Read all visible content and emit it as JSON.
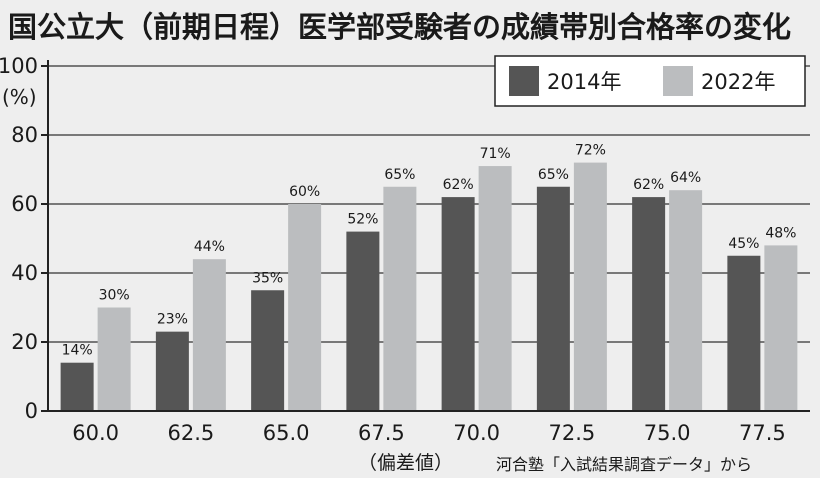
{
  "chart_data": {
    "type": "bar",
    "title": "国公立大（前期日程）医学部受験者の成績帯別合格率の変化",
    "categories": [
      "60.0",
      "62.5",
      "65.0",
      "67.5",
      "70.0",
      "72.5",
      "75.0",
      "77.5"
    ],
    "series": [
      {
        "name": "2014年",
        "color": "#555555",
        "values": [
          14,
          23,
          35,
          52,
          62,
          65,
          62,
          45
        ],
        "labels": [
          "14%",
          "23%",
          "35%",
          "52%",
          "62%",
          "65%",
          "62%",
          "45%"
        ]
      },
      {
        "name": "2022年",
        "color": "#bbbdbf",
        "values": [
          30,
          44,
          60,
          65,
          71,
          72,
          64,
          48
        ],
        "labels": [
          "30%",
          "44%",
          "60%",
          "65%",
          "71%",
          "72%",
          "64%",
          "48%"
        ]
      }
    ],
    "ylim": [
      0,
      100
    ],
    "yticks": [
      "0",
      "20",
      "40",
      "60",
      "80",
      "100"
    ],
    "ylabel": "(%)",
    "xlabel": "（偏差値）",
    "source": "河合塾「入試結果調査データ」から",
    "gridlines": true,
    "legend_position": "top-right"
  }
}
